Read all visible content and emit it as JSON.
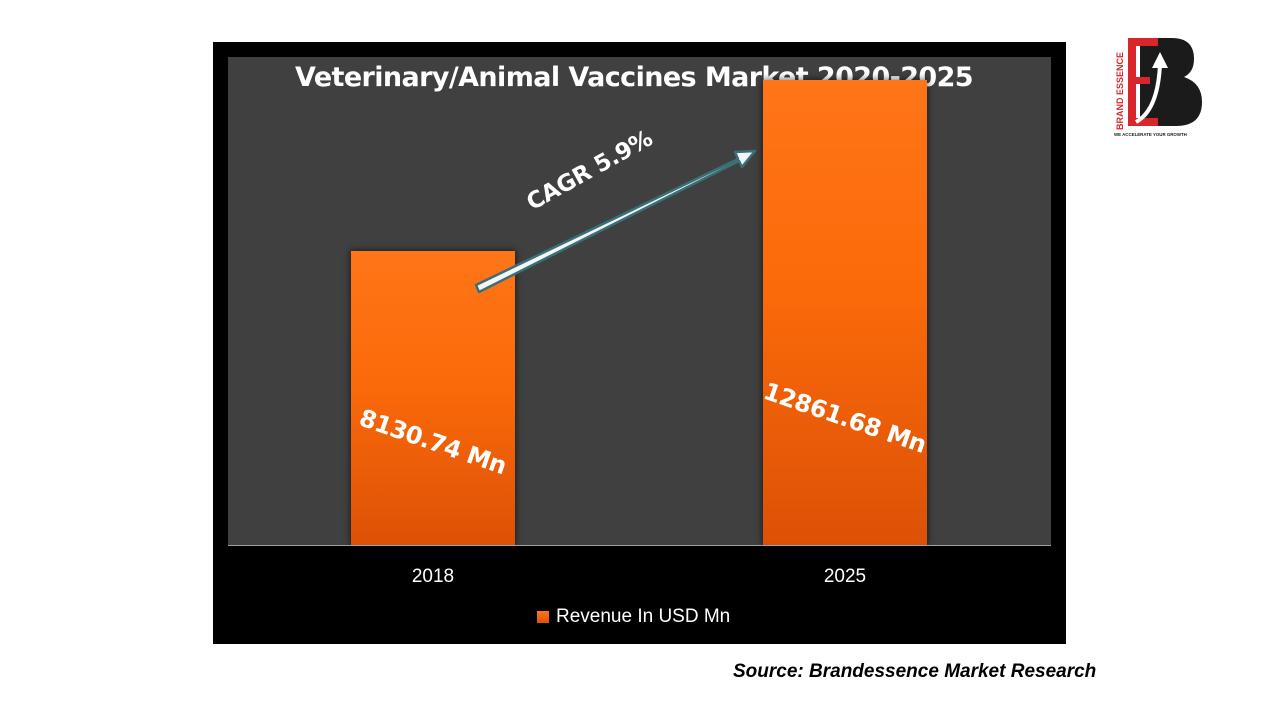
{
  "colors": {
    "frame": "#000000",
    "plot_background": "#404040",
    "bar": "#fb6a0a",
    "arrow_fill": "#f2f6f6",
    "arrow_stroke": "#3a6f78",
    "text": "#ffffff",
    "logo_red": "#d9262d",
    "logo_dark": "#1b1b1b"
  },
  "chart_data": {
    "type": "bar",
    "title": "Veterinary/Animal Vaccines Market 2020-2025",
    "categories": [
      "2018",
      "2025"
    ],
    "series": [
      {
        "name": "Revenue In USD Mn",
        "values": [
          8130.74,
          12861.68
        ],
        "data_labels": [
          "8130.74 Mn",
          "12861.68 Mn"
        ]
      }
    ],
    "ylim": [
      0,
      13500
    ],
    "grid": false,
    "legend_position": "bottom",
    "annotations": [
      "CAGR 5.9%"
    ]
  },
  "source": "Source: Brandessence Market Research",
  "logo": {
    "vertical_text": "BRAND ESSENCE",
    "tagline": "WE ACCELERATE YOUR GROWTH"
  }
}
